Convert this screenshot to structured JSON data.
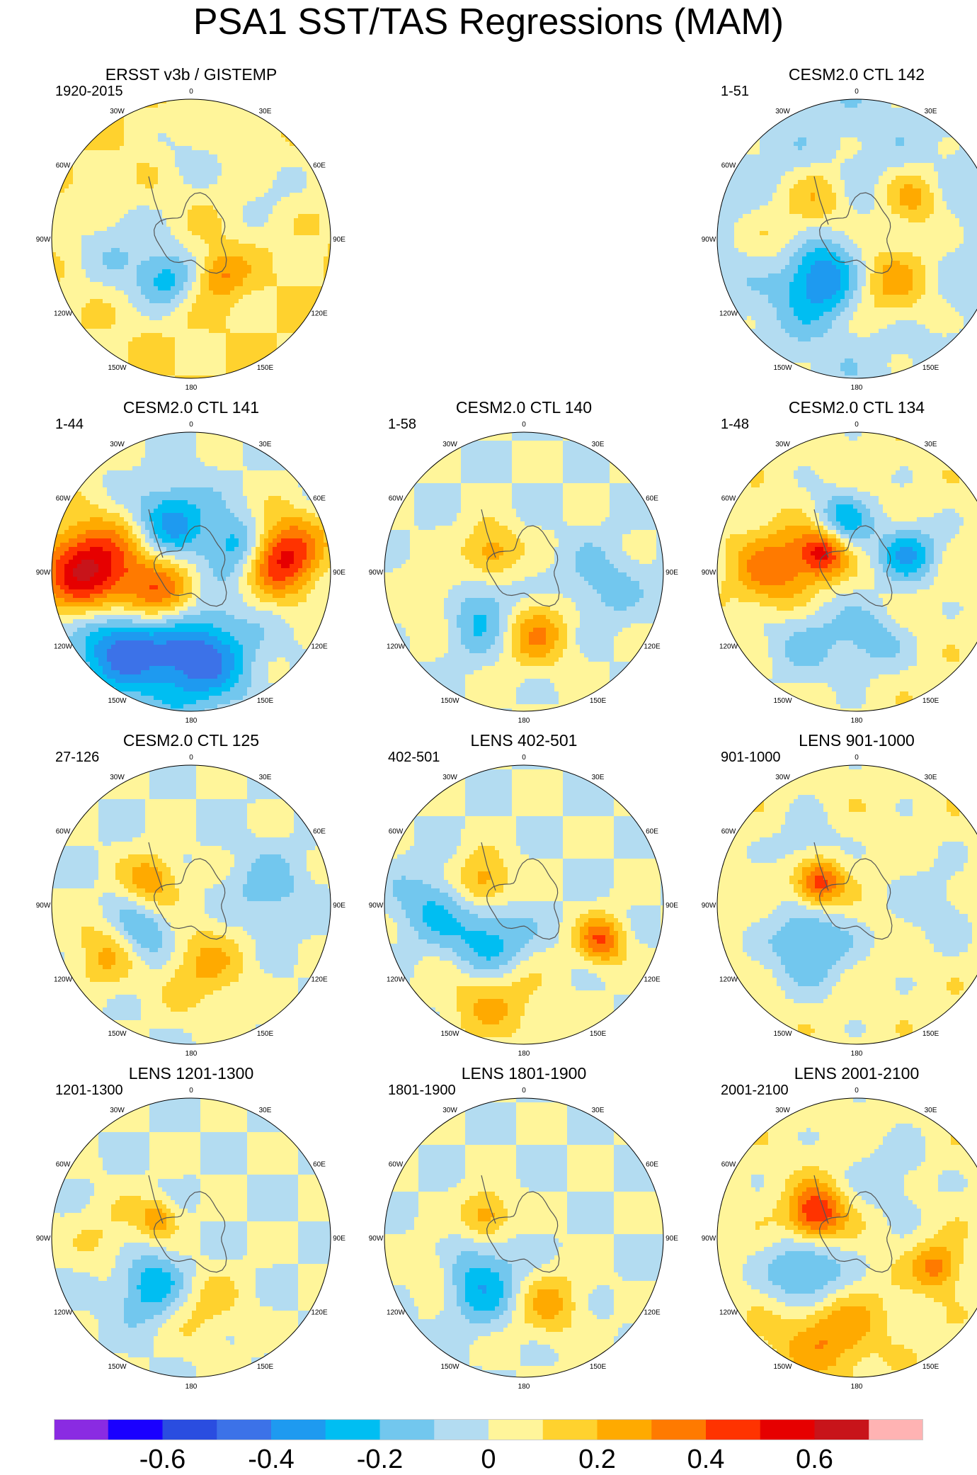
{
  "title": "PSA1 SST/TAS Regressions (MAM)",
  "chart_data": {
    "type": "filled-contour polar-map panels",
    "projection": "south polar stereographic",
    "colorbar": {
      "levels": [
        -0.7,
        -0.6,
        -0.5,
        -0.4,
        -0.3,
        -0.2,
        -0.1,
        0,
        0.1,
        0.2,
        0.3,
        0.4,
        0.5,
        0.6,
        0.7
      ],
      "tick_labels": [
        "-0.6",
        "-0.4",
        "-0.2",
        "0",
        "0.2",
        "0.4",
        "0.6"
      ],
      "tick_values": [
        -0.6,
        -0.4,
        -0.2,
        0,
        0.2,
        0.4,
        0.6
      ],
      "colors": [
        "#8a2be2",
        "#1a00ff",
        "#2a4de0",
        "#3c72e8",
        "#1e9af0",
        "#00bef2",
        "#72c7ee",
        "#b3dcf1",
        "#fff59a",
        "#ffd22e",
        "#ffaa00",
        "#ff7a00",
        "#ff3300",
        "#e60000",
        "#c8141a",
        "#ffb3b3"
      ]
    },
    "longitude_labels": [
      "0",
      "30E",
      "60E",
      "90E",
      "120E",
      "150E",
      "180",
      "150W",
      "120W",
      "90W",
      "60W",
      "30W"
    ],
    "panels": [
      {
        "title": "ERSST v3b / GISTEMP",
        "subtitle": "1920-2015",
        "slot": 0,
        "base": 0.1,
        "blobs": [
          {
            "lon": 210,
            "lat": -60,
            "r": 0.14,
            "v": -0.25
          },
          {
            "lon": 240,
            "lat": -55,
            "r": 0.22,
            "v": -0.12
          },
          {
            "lon": 0,
            "lat": -35,
            "r": 0.2,
            "v": -0.12
          },
          {
            "lon": 270,
            "lat": -35,
            "r": 0.25,
            "v": -0.12
          },
          {
            "lon": 140,
            "lat": -60,
            "r": 0.12,
            "v": 0.22
          },
          {
            "lon": 60,
            "lat": -30,
            "r": 0.22,
            "v": -0.11
          }
        ]
      },
      {
        "title": "CESM2.0 CTL 142",
        "subtitle": "1-51",
        "slot": 2,
        "base": -0.05,
        "blobs": [
          {
            "lon": 225,
            "lat": -55,
            "r": 0.2,
            "v": -0.4
          },
          {
            "lon": 140,
            "lat": -55,
            "r": 0.22,
            "v": 0.28
          },
          {
            "lon": 55,
            "lat": -45,
            "r": 0.15,
            "v": 0.25
          },
          {
            "lon": 270,
            "lat": -45,
            "r": 0.2,
            "v": 0.18
          },
          {
            "lon": 320,
            "lat": -55,
            "r": 0.15,
            "v": 0.2
          }
        ]
      },
      {
        "title": "CESM2.0 CTL 141",
        "subtitle": "1-44",
        "slot": 3,
        "base": 0.0,
        "blobs": [
          {
            "lon": 270,
            "lat": -25,
            "r": 0.25,
            "v": 0.65
          },
          {
            "lon": 230,
            "lat": -60,
            "r": 0.2,
            "v": 0.5
          },
          {
            "lon": 225,
            "lat": -30,
            "r": 0.25,
            "v": -0.55
          },
          {
            "lon": 175,
            "lat": -35,
            "r": 0.25,
            "v": -0.45
          },
          {
            "lon": 80,
            "lat": -30,
            "r": 0.2,
            "v": 0.55
          },
          {
            "lon": 340,
            "lat": -55,
            "r": 0.18,
            "v": -0.35
          },
          {
            "lon": 60,
            "lat": -55,
            "r": 0.15,
            "v": -0.35
          }
        ]
      },
      {
        "title": "CESM2.0 CTL 140",
        "subtitle": "1-58",
        "slot": 4,
        "base": 0.0,
        "blobs": [
          {
            "lon": 230,
            "lat": -50,
            "r": 0.2,
            "v": -0.3
          },
          {
            "lon": 170,
            "lat": -50,
            "r": 0.18,
            "v": 0.3
          },
          {
            "lon": 300,
            "lat": -65,
            "r": 0.14,
            "v": 0.3
          },
          {
            "lon": 100,
            "lat": -40,
            "r": 0.2,
            "v": -0.15
          },
          {
            "lon": 250,
            "lat": -35,
            "r": 0.18,
            "v": 0.2
          }
        ]
      },
      {
        "title": "CESM2.0 CTL 134",
        "subtitle": "1-48",
        "slot": 5,
        "base": 0.05,
        "blobs": [
          {
            "lon": 270,
            "lat": -40,
            "r": 0.22,
            "v": 0.35
          },
          {
            "lon": 300,
            "lat": -65,
            "r": 0.12,
            "v": 0.45
          },
          {
            "lon": 220,
            "lat": -40,
            "r": 0.25,
            "v": -0.2
          },
          {
            "lon": 70,
            "lat": -55,
            "r": 0.15,
            "v": -0.35
          },
          {
            "lon": 345,
            "lat": -55,
            "r": 0.15,
            "v": -0.3
          },
          {
            "lon": 165,
            "lat": -45,
            "r": 0.15,
            "v": -0.2
          }
        ]
      },
      {
        "title": "CESM2.0 CTL 125",
        "subtitle": "27-126",
        "slot": 6,
        "base": 0.0,
        "blobs": [
          {
            "lon": 240,
            "lat": -50,
            "r": 0.18,
            "v": -0.3
          },
          {
            "lon": 300,
            "lat": -60,
            "r": 0.14,
            "v": 0.3
          },
          {
            "lon": 240,
            "lat": -30,
            "r": 0.18,
            "v": 0.3
          },
          {
            "lon": 170,
            "lat": -50,
            "r": 0.22,
            "v": 0.22
          },
          {
            "lon": 80,
            "lat": -40,
            "r": 0.2,
            "v": -0.15
          }
        ]
      },
      {
        "title": "LENS 402-501",
        "subtitle": "402-501",
        "slot": 7,
        "base": 0.0,
        "blobs": [
          {
            "lon": 220,
            "lat": -55,
            "r": 0.2,
            "v": -0.35
          },
          {
            "lon": 300,
            "lat": -60,
            "r": 0.14,
            "v": 0.3
          },
          {
            "lon": 200,
            "lat": -30,
            "r": 0.25,
            "v": 0.25
          },
          {
            "lon": 115,
            "lat": -35,
            "r": 0.12,
            "v": 0.4
          },
          {
            "lon": 270,
            "lat": -30,
            "r": 0.18,
            "v": -0.2
          }
        ]
      },
      {
        "title": "LENS 901-1000",
        "subtitle": "901-1000",
        "slot": 8,
        "base": 0.05,
        "blobs": [
          {
            "lon": 230,
            "lat": -50,
            "r": 0.2,
            "v": -0.3
          },
          {
            "lon": 300,
            "lat": -62,
            "r": 0.12,
            "v": 0.45
          },
          {
            "lon": 320,
            "lat": -40,
            "r": 0.15,
            "v": -0.15
          },
          {
            "lon": 90,
            "lat": -40,
            "r": 0.2,
            "v": -0.12
          }
        ]
      },
      {
        "title": "LENS 1201-1300",
        "subtitle": "1201-1300",
        "slot": 9,
        "base": 0.0,
        "blobs": [
          {
            "lon": 220,
            "lat": -50,
            "r": 0.18,
            "v": -0.3
          },
          {
            "lon": 300,
            "lat": -65,
            "r": 0.1,
            "v": 0.25
          },
          {
            "lon": 170,
            "lat": -45,
            "r": 0.2,
            "v": 0.15
          },
          {
            "lon": 270,
            "lat": -40,
            "r": 0.2,
            "v": 0.12
          }
        ]
      },
      {
        "title": "LENS 1801-1900",
        "subtitle": "1801-1900",
        "slot": 10,
        "base": 0.0,
        "blobs": [
          {
            "lon": 225,
            "lat": -50,
            "r": 0.2,
            "v": -0.3
          },
          {
            "lon": 300,
            "lat": -62,
            "r": 0.12,
            "v": 0.3
          },
          {
            "lon": 160,
            "lat": -45,
            "r": 0.18,
            "v": 0.22
          },
          {
            "lon": 250,
            "lat": -30,
            "r": 0.15,
            "v": 0.15
          }
        ]
      },
      {
        "title": "LENS 2001-2100",
        "subtitle": "2001-2100",
        "slot": 11,
        "base": 0.05,
        "blobs": [
          {
            "lon": 230,
            "lat": -50,
            "r": 0.2,
            "v": -0.4
          },
          {
            "lon": 300,
            "lat": -60,
            "r": 0.14,
            "v": 0.5
          },
          {
            "lon": 200,
            "lat": -30,
            "r": 0.25,
            "v": 0.3
          },
          {
            "lon": 110,
            "lat": -35,
            "r": 0.12,
            "v": 0.3
          },
          {
            "lon": 30,
            "lat": -45,
            "r": 0.2,
            "v": -0.12
          }
        ]
      }
    ]
  }
}
